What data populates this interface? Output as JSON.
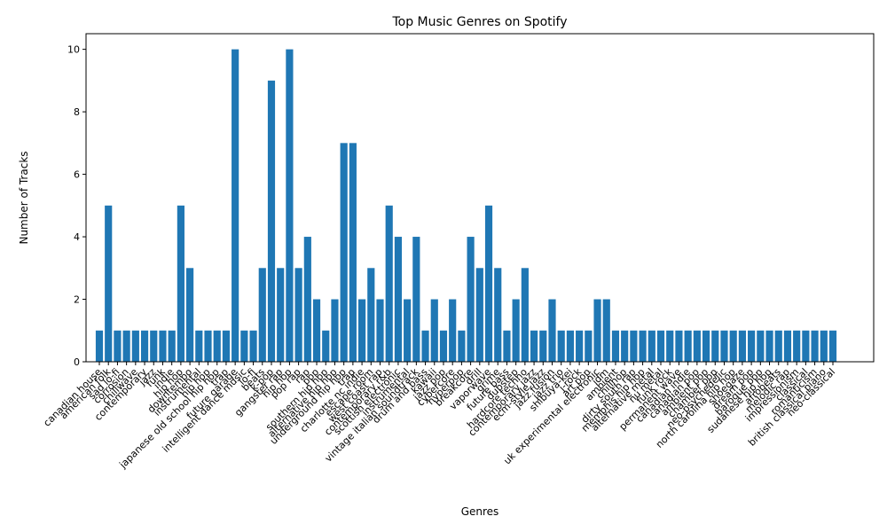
{
  "chart_data": {
    "type": "bar",
    "title": "Top Music Genres on Spotify",
    "xlabel": "Genres",
    "ylabel": "Number of Tracks",
    "ylim": [
      0,
      10.5
    ],
    "yticks": [
      0,
      2,
      4,
      6,
      8,
      10
    ],
    "grid": false,
    "bar_color": "#1f77b4",
    "categories": [
      "canadian house",
      "american folk",
      "sad lo-fi",
      "corrosion",
      "chillwave",
      "contemporary",
      "jazz",
      "funk",
      "indie",
      "hip hop",
      "downtempo",
      "instrumental",
      "hip hop",
      "japanese old school hip hop",
      "trap",
      "future garage",
      "intelligent dance music",
      "lo-fi",
      "beats",
      "k-pop",
      "gangster rap",
      "hip hop",
      "pop rap",
      "rap",
      "pop",
      "southern hip hop",
      "alternative hip hop",
      "underground hip hop",
      "trap",
      "charlotte nc indie",
      "escape room",
      "west coast rap",
      "contemporary r&b",
      "scottish electronic",
      "instrumental",
      "vintage italian soundtrack",
      "drum and bass",
      "kawaii",
      "jazz pop",
      "cybercore",
      "hyperpop",
      "breakcore",
      "drill",
      "vaporwave",
      "grime",
      "future bass",
      "dubstep",
      "hardcore techno",
      "contemporary jazz",
      "ecm-style jazz",
      "jazz fusion",
      "jazz trio",
      "shibuya-kei",
      "j-rock",
      "art pop",
      "uk experimental electronic",
      "idm",
      "ambient",
      "chillhop",
      "dirty south rap",
      "memphis hip hop",
      "alternative metal",
      "nu metal",
      "funk rock",
      "permanent wave",
      "canadian indie",
      "canadian pop",
      "ambient pop",
      "chamber pop",
      "neo-psychedelic",
      "north carolina hip hop",
      "shoegaze",
      "dream pop",
      "baroque pop",
      "sudanese hip hop",
      "afrobeats",
      "melodic rap",
      "impressionism",
      "classical",
      "romanticism",
      "british classical piano",
      "neo-classical"
    ],
    "values": [
      1,
      5,
      1,
      1,
      1,
      1,
      1,
      1,
      1,
      5,
      3,
      1,
      1,
      1,
      1,
      10,
      1,
      1,
      3,
      9,
      3,
      10,
      3,
      4,
      2,
      1,
      2,
      7,
      7,
      2,
      3,
      2,
      5,
      4,
      2,
      4,
      1,
      2,
      1,
      2,
      1,
      4,
      3,
      5,
      3,
      1,
      2,
      3,
      1,
      1,
      2,
      1,
      1,
      1,
      1,
      2,
      2,
      1,
      1,
      1,
      1,
      1,
      1,
      1,
      1,
      1,
      1,
      1,
      1,
      1,
      1,
      1,
      1,
      1,
      1,
      1,
      1,
      1,
      1,
      1,
      1,
      1
    ]
  }
}
